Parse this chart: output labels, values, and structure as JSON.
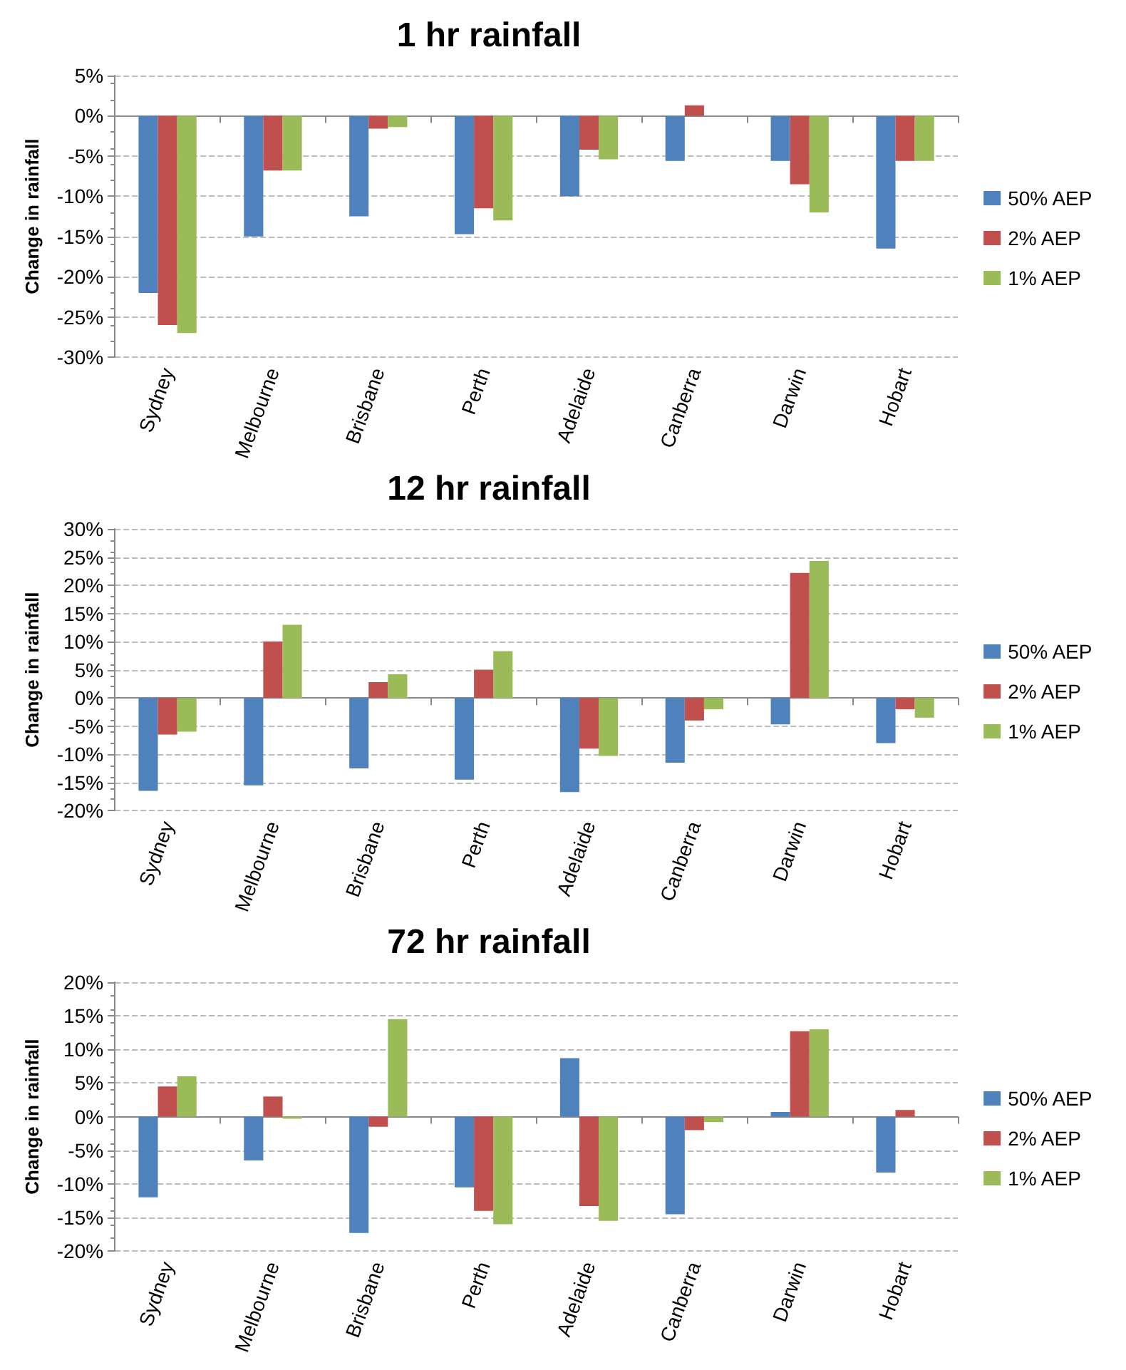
{
  "chart_data": [
    {
      "type": "bar",
      "title": "1 hr rainfall",
      "ylabel": "Change in rainfall",
      "categories": [
        "Sydney",
        "Melbourne",
        "Brisbane",
        "Perth",
        "Adelaide",
        "Canberra",
        "Darwin",
        "Hobart"
      ],
      "series": [
        {
          "name": "50% AEP",
          "color": "#4f81bd",
          "values": [
            -22,
            -15,
            -12.5,
            -14.7,
            -10,
            -5.6,
            -5.6,
            -16.5
          ]
        },
        {
          "name": "2% AEP",
          "color": "#c0504d",
          "values": [
            -26,
            -6.8,
            -1.6,
            -11.5,
            -4.2,
            1.3,
            -8.5,
            -5.6
          ]
        },
        {
          "name": "1% AEP",
          "color": "#9bbb59",
          "values": [
            -27,
            -6.8,
            -1.4,
            -13,
            -5.4,
            0,
            -12,
            -5.6
          ]
        }
      ],
      "ylim": [
        -30,
        5
      ],
      "yticks": [
        {
          "value": -30,
          "label": "-30%"
        },
        {
          "value": -25,
          "label": "-25%"
        },
        {
          "value": -20,
          "label": "-20%"
        },
        {
          "value": -15,
          "label": "-15%"
        },
        {
          "value": -10,
          "label": "-10%"
        },
        {
          "value": -5,
          "label": "-5%"
        },
        {
          "value": 0,
          "label": "0%"
        },
        {
          "value": 5,
          "label": "5%"
        }
      ],
      "grid": "y",
      "legend": "right"
    },
    {
      "type": "bar",
      "title": "12 hr rainfall",
      "ylabel": "Change in rainfall",
      "categories": [
        "Sydney",
        "Melbourne",
        "Brisbane",
        "Perth",
        "Adelaide",
        "Canberra",
        "Darwin",
        "Hobart"
      ],
      "series": [
        {
          "name": "50% AEP",
          "color": "#4f81bd",
          "values": [
            -16.5,
            -15.5,
            -12.5,
            -14.5,
            -16.7,
            -11.5,
            -4.7,
            -8
          ]
        },
        {
          "name": "2% AEP",
          "color": "#c0504d",
          "values": [
            -6.5,
            10,
            2.8,
            5,
            -9,
            -4,
            22.2,
            -2
          ]
        },
        {
          "name": "1% AEP",
          "color": "#9bbb59",
          "values": [
            -6,
            13,
            4.2,
            8.3,
            -10.3,
            -2,
            24.3,
            -3.5
          ]
        }
      ],
      "ylim": [
        -20,
        30
      ],
      "yticks": [
        {
          "value": -20,
          "label": "-20%"
        },
        {
          "value": -15,
          "label": "-15%"
        },
        {
          "value": -10,
          "label": "-10%"
        },
        {
          "value": -5,
          "label": "-5%"
        },
        {
          "value": 0,
          "label": "0%"
        },
        {
          "value": 5,
          "label": "5%"
        },
        {
          "value": 10,
          "label": "10%"
        },
        {
          "value": 15,
          "label": "15%"
        },
        {
          "value": 20,
          "label": "20%"
        },
        {
          "value": 25,
          "label": "25%"
        },
        {
          "value": 30,
          "label": "30%"
        }
      ],
      "grid": "y",
      "legend": "right"
    },
    {
      "type": "bar",
      "title": "72 hr rainfall",
      "ylabel": "Change in rainfall",
      "categories": [
        "Sydney",
        "Melbourne",
        "Brisbane",
        "Perth",
        "Adelaide",
        "Canberra",
        "Darwin",
        "Hobart"
      ],
      "series": [
        {
          "name": "50% AEP",
          "color": "#4f81bd",
          "values": [
            -12,
            -6.5,
            -17.3,
            -10.5,
            8.7,
            -14.5,
            0.7,
            -8.3
          ]
        },
        {
          "name": "2% AEP",
          "color": "#c0504d",
          "values": [
            4.5,
            3,
            -1.5,
            -14,
            -13.3,
            -2,
            12.7,
            1
          ]
        },
        {
          "name": "1% AEP",
          "color": "#9bbb59",
          "values": [
            6,
            -0.3,
            14.5,
            -16,
            -15.5,
            -0.8,
            13,
            0
          ]
        }
      ],
      "ylim": [
        -20,
        20
      ],
      "yticks": [
        {
          "value": -20,
          "label": "-20%"
        },
        {
          "value": -15,
          "label": "-15%"
        },
        {
          "value": -10,
          "label": "-10%"
        },
        {
          "value": -5,
          "label": "-5%"
        },
        {
          "value": 0,
          "label": "0%"
        },
        {
          "value": 5,
          "label": "5%"
        },
        {
          "value": 10,
          "label": "10%"
        },
        {
          "value": 15,
          "label": "15%"
        },
        {
          "value": 20,
          "label": "20%"
        }
      ],
      "grid": "y",
      "legend": "right"
    }
  ]
}
